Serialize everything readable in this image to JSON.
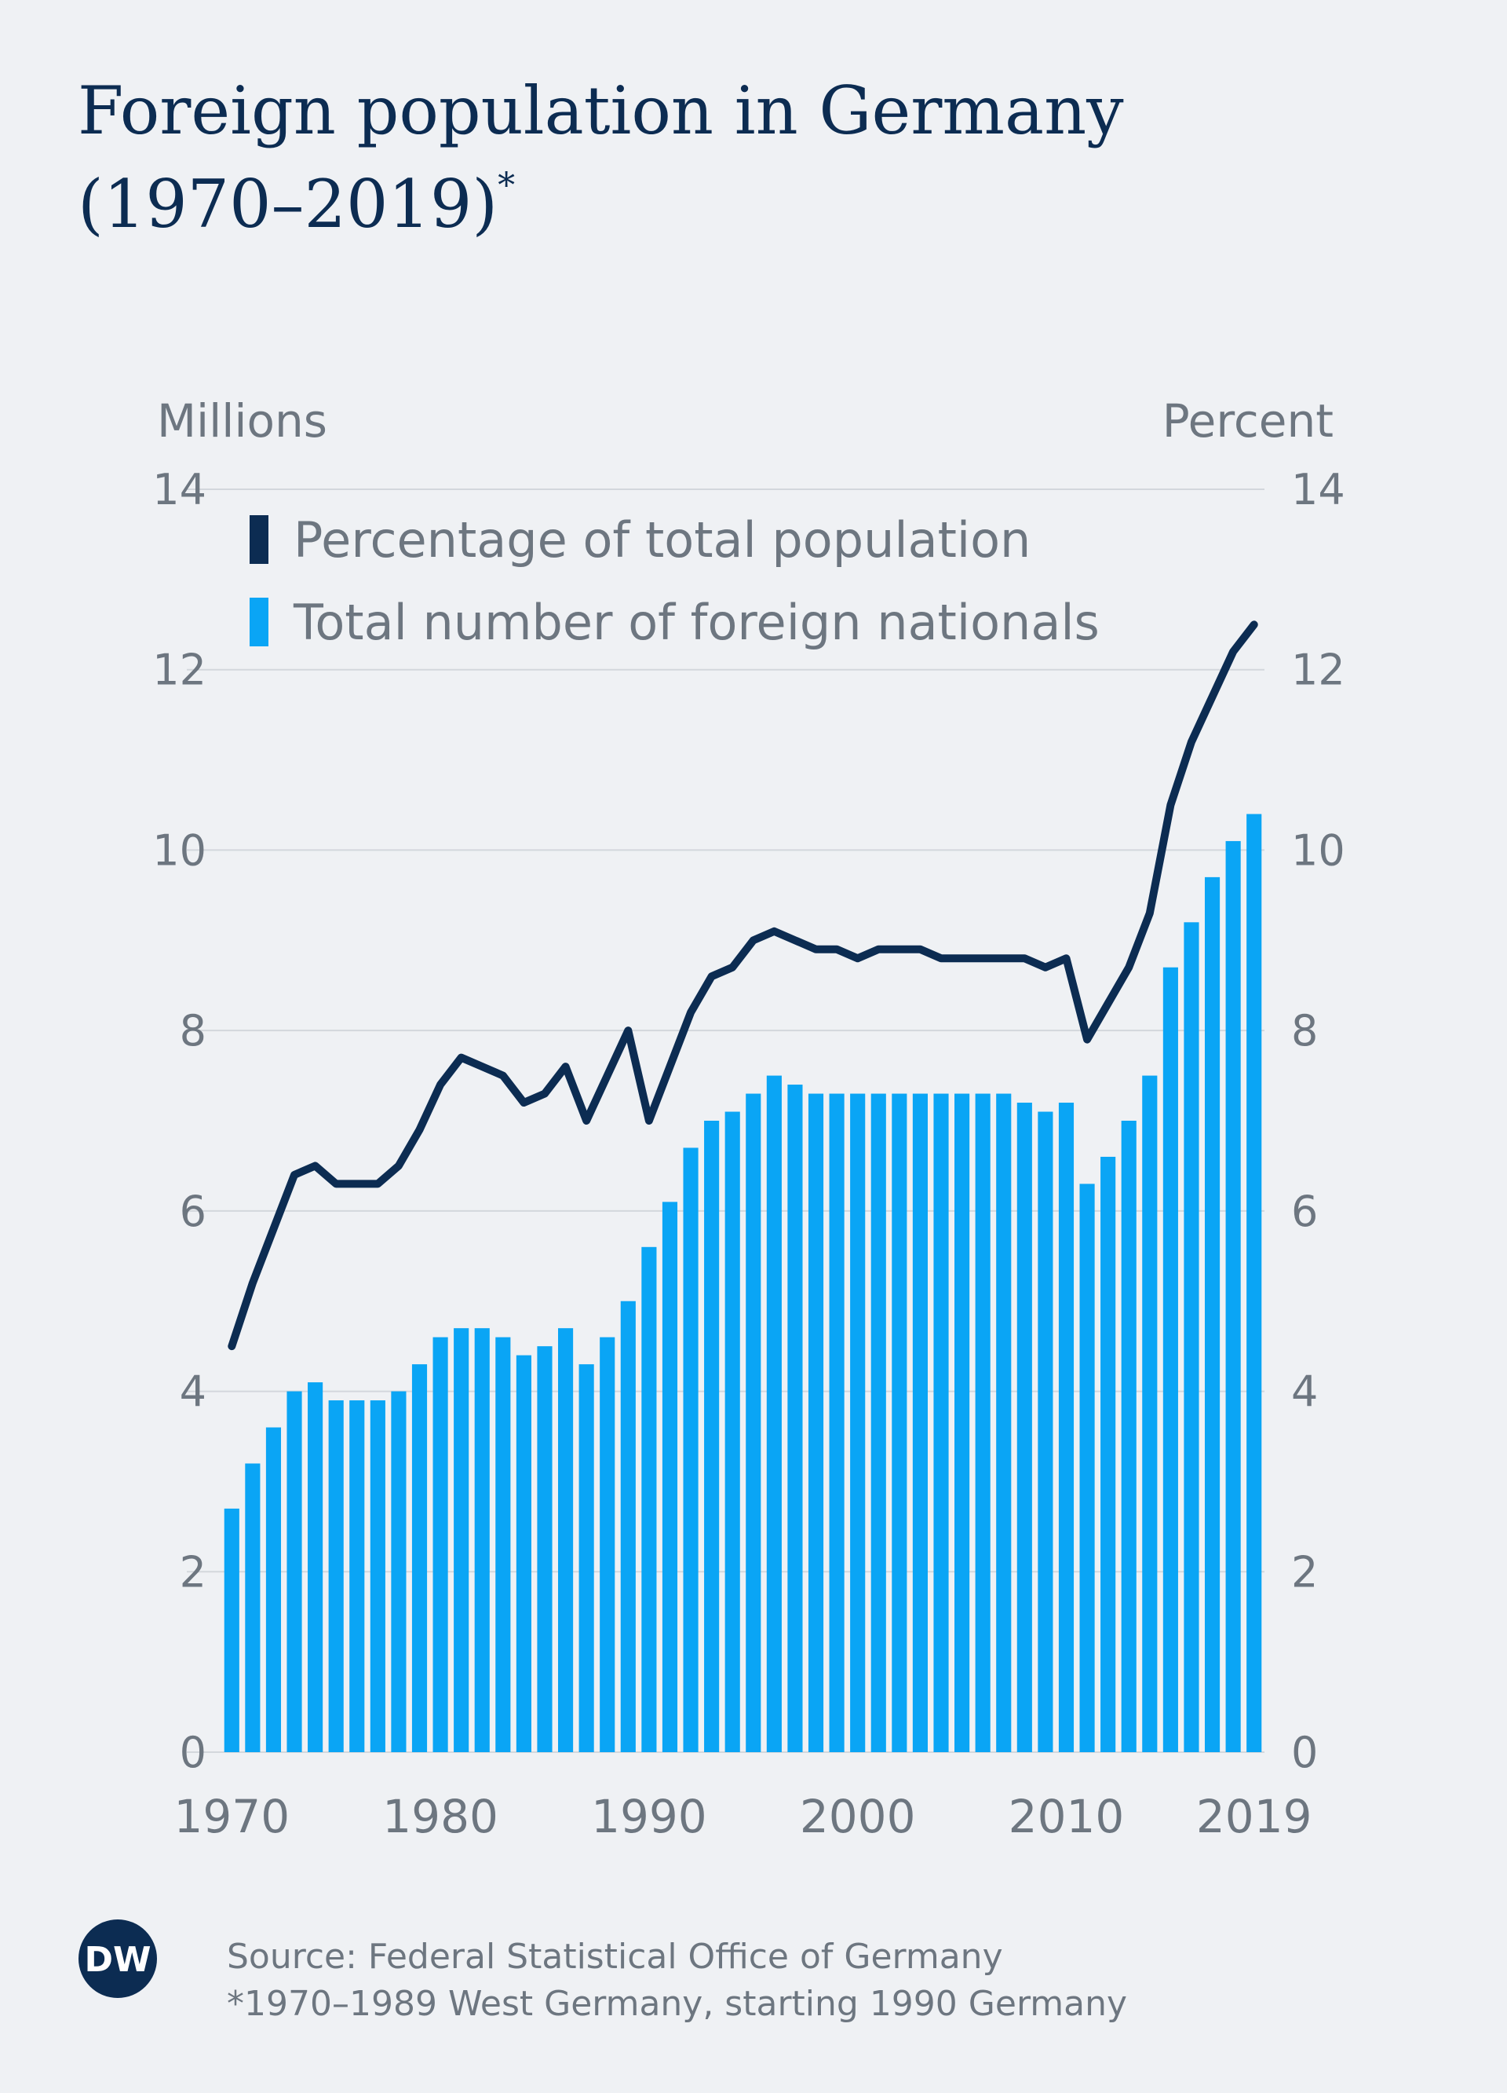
{
  "chart_data": {
    "type": "bar",
    "title": [
      "Foreign population in Germany",
      "(1970–2019)"
    ],
    "title_note": "*",
    "y_label": "Millions",
    "y2_label": "Percent",
    "x": [
      1970,
      1971,
      1972,
      1973,
      1974,
      1975,
      1976,
      1977,
      1978,
      1979,
      1980,
      1981,
      1982,
      1983,
      1984,
      1985,
      1986,
      1987,
      1988,
      1989,
      1990,
      1991,
      1992,
      1993,
      1994,
      1995,
      1996,
      1997,
      1998,
      1999,
      2000,
      2001,
      2002,
      2003,
      2004,
      2005,
      2006,
      2007,
      2008,
      2009,
      2010,
      2011,
      2012,
      2013,
      2014,
      2015,
      2016,
      2017,
      2018,
      2019
    ],
    "xlim": [
      1969.5,
      2019.5
    ],
    "xticks": [
      1970,
      1980,
      1990,
      2000,
      2010,
      2019
    ],
    "ylim": [
      0,
      14
    ],
    "yticks": [
      0,
      2,
      4,
      6,
      8,
      10,
      12,
      14
    ],
    "y2lim": [
      0,
      14
    ],
    "y2ticks": [
      0,
      2,
      4,
      6,
      8,
      10,
      12,
      14
    ],
    "grid": true,
    "series": [
      {
        "name": "Percentage of total population",
        "type": "line",
        "axis": "y2",
        "color": "#0c2c52",
        "values": [
          4.5,
          5.2,
          5.8,
          6.4,
          6.5,
          6.3,
          6.3,
          6.3,
          6.5,
          6.9,
          7.4,
          7.7,
          7.6,
          7.5,
          7.2,
          7.3,
          7.6,
          7.0,
          7.5,
          8.0,
          7.0,
          7.6,
          8.2,
          8.6,
          8.7,
          9.0,
          9.1,
          9.0,
          8.9,
          8.9,
          8.8,
          8.9,
          8.9,
          8.9,
          8.8,
          8.8,
          8.8,
          8.8,
          8.8,
          8.7,
          8.8,
          7.9,
          8.3,
          8.7,
          9.3,
          10.5,
          11.2,
          11.7,
          12.2,
          12.5
        ]
      },
      {
        "name": "Total number of foreign nationals",
        "type": "bar",
        "axis": "y",
        "color": "#0aa5f5",
        "values": [
          2.7,
          3.2,
          3.6,
          4.0,
          4.1,
          3.9,
          3.9,
          3.9,
          4.0,
          4.3,
          4.6,
          4.7,
          4.7,
          4.6,
          4.4,
          4.5,
          4.7,
          4.3,
          4.6,
          5.0,
          5.6,
          6.1,
          6.7,
          7.0,
          7.1,
          7.3,
          7.5,
          7.4,
          7.3,
          7.3,
          7.3,
          7.3,
          7.3,
          7.3,
          7.3,
          7.3,
          7.3,
          7.3,
          7.2,
          7.1,
          7.2,
          6.3,
          6.6,
          7.0,
          7.5,
          8.7,
          9.2,
          9.7,
          10.1,
          10.4
        ]
      }
    ],
    "logo": "DW",
    "source": "Source: Federal Statistical Office of Germany",
    "footnote": "*1970–1989 West Germany, starting 1990 Germany"
  }
}
